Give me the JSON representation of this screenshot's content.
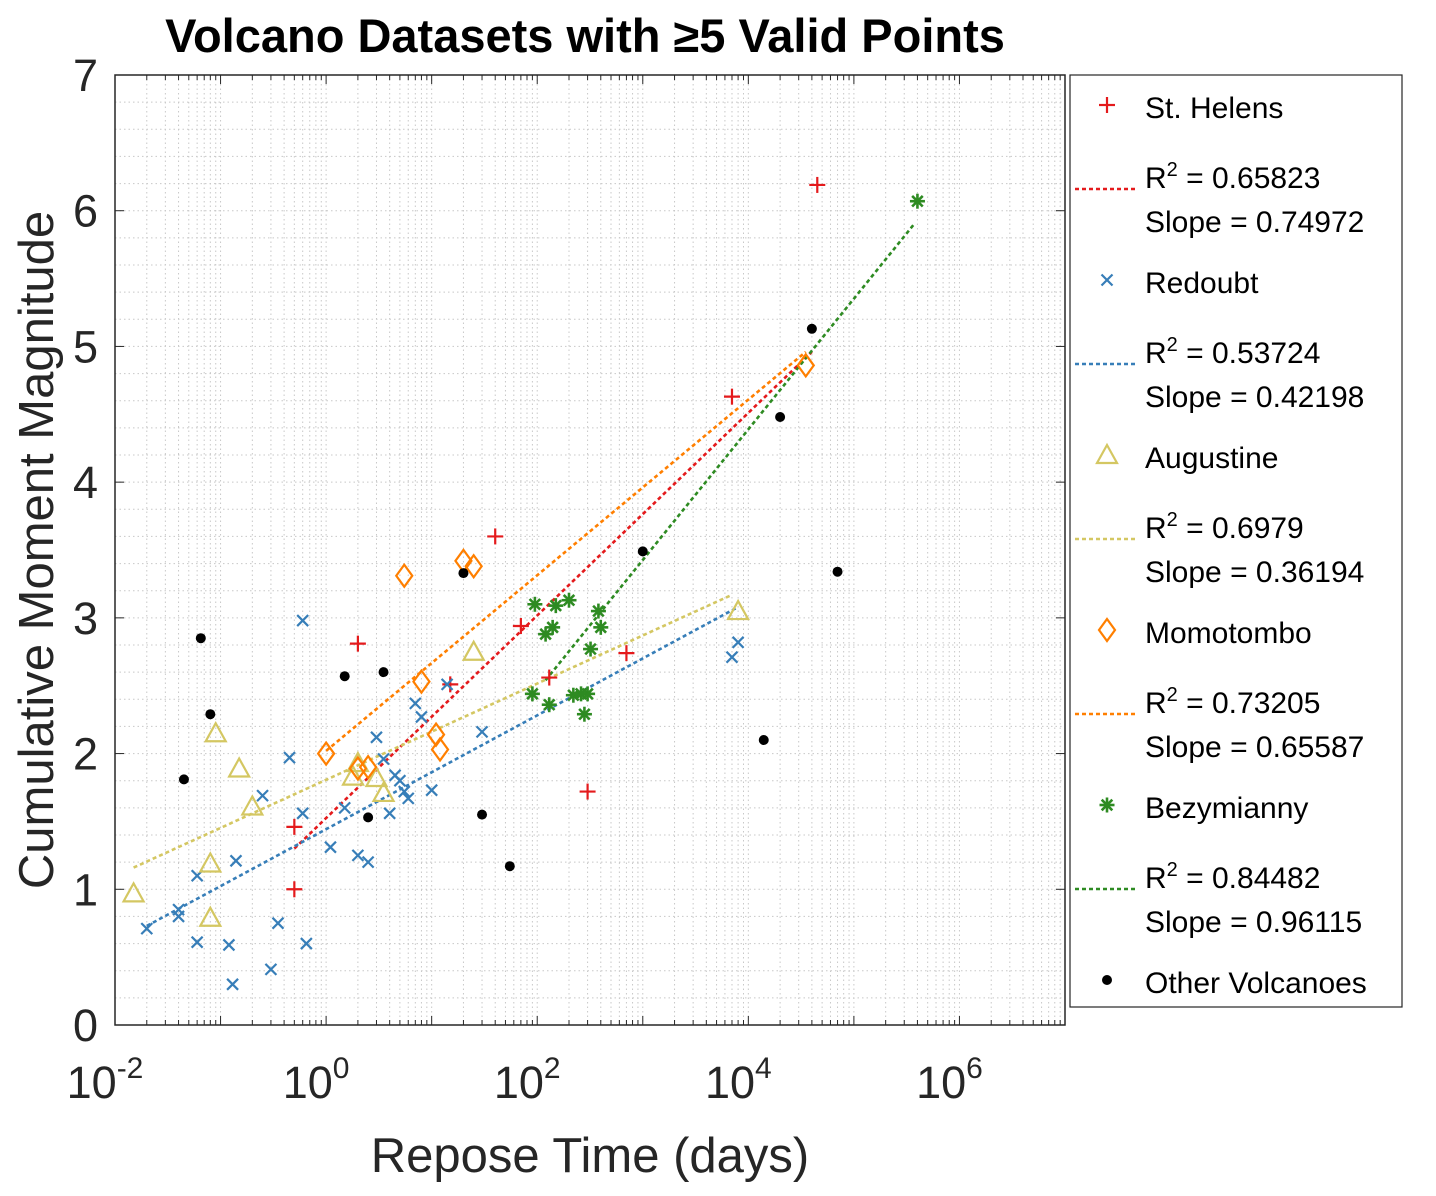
{
  "chart_data": {
    "type": "scatter",
    "title": "Volcano Datasets with ≥5 Valid Points",
    "xlabel": "Repose Time (days)",
    "ylabel": "Cumulative Moment Magnitude",
    "xscale": "log",
    "xlim": [
      0.01,
      10000000
    ],
    "ylim": [
      0,
      7
    ],
    "grid": "minor-dotted",
    "legend_position": "outside-right",
    "x_ticks": [
      {
        "base": "10",
        "exp": "-2",
        "value": 0.01
      },
      {
        "base": "10",
        "exp": "0",
        "value": 1
      },
      {
        "base": "10",
        "exp": "2",
        "value": 100
      },
      {
        "base": "10",
        "exp": "4",
        "value": 10000
      },
      {
        "base": "10",
        "exp": "6",
        "value": 1000000
      }
    ],
    "y_ticks": [
      "0",
      "1",
      "2",
      "3",
      "4",
      "5",
      "6",
      "7"
    ],
    "series": [
      {
        "name": "St. Helens",
        "marker": "plus",
        "color": "#e41a1c",
        "points": [
          [
            0.5,
            1.0
          ],
          [
            0.5,
            1.46
          ],
          [
            2.0,
            2.81
          ],
          [
            15,
            2.51
          ],
          [
            40,
            3.6
          ],
          [
            70,
            2.94
          ],
          [
            130,
            2.56
          ],
          [
            300,
            1.72
          ],
          [
            700,
            2.74
          ],
          [
            7000,
            4.63
          ],
          [
            45000,
            6.19
          ]
        ],
        "fit": {
          "r2_label": "R² = 0.65823",
          "r2_text": "= 0.65823",
          "slope_text": "Slope = 0.74972",
          "from": [
            0.5,
            1.3
          ],
          "to": [
            40000,
            4.96
          ]
        }
      },
      {
        "name": "Redoubt",
        "marker": "x",
        "color": "#377eb8",
        "points": [
          [
            0.02,
            0.71
          ],
          [
            0.04,
            0.8
          ],
          [
            0.04,
            0.85
          ],
          [
            0.06,
            0.61
          ],
          [
            0.06,
            1.1
          ],
          [
            0.12,
            0.59
          ],
          [
            0.13,
            0.3
          ],
          [
            0.14,
            1.21
          ],
          [
            0.25,
            1.69
          ],
          [
            0.3,
            0.41
          ],
          [
            0.35,
            0.75
          ],
          [
            0.45,
            1.97
          ],
          [
            0.6,
            1.56
          ],
          [
            0.6,
            2.98
          ],
          [
            0.65,
            0.6
          ],
          [
            1.1,
            1.31
          ],
          [
            1.5,
            1.6
          ],
          [
            2,
            1.25
          ],
          [
            2.5,
            1.2
          ],
          [
            3,
            2.12
          ],
          [
            3.5,
            1.96
          ],
          [
            4,
            1.56
          ],
          [
            4.5,
            1.84
          ],
          [
            5,
            1.8
          ],
          [
            5.5,
            1.72
          ],
          [
            6,
            1.67
          ],
          [
            7,
            2.37
          ],
          [
            8,
            2.27
          ],
          [
            10,
            1.73
          ],
          [
            14,
            2.51
          ],
          [
            30,
            2.16
          ],
          [
            7000,
            2.71
          ],
          [
            8000,
            2.82
          ]
        ],
        "fit": {
          "r2_label": "R² = 0.53724",
          "r2_text": "= 0.53724",
          "slope_text": "Slope = 0.42198",
          "from": [
            0.02,
            0.73
          ],
          "to": [
            8000,
            3.08
          ]
        }
      },
      {
        "name": "Augustine",
        "marker": "triangle",
        "color": "#d4c762",
        "points": [
          [
            0.015,
            0.97
          ],
          [
            0.08,
            1.19
          ],
          [
            0.08,
            0.79
          ],
          [
            0.09,
            2.15
          ],
          [
            0.15,
            1.89
          ],
          [
            0.2,
            1.61
          ],
          [
            1.8,
            1.83
          ],
          [
            2.0,
            1.93
          ],
          [
            3.0,
            1.82
          ],
          [
            3.5,
            1.71
          ],
          [
            25,
            2.75
          ],
          [
            8000,
            3.05
          ]
        ],
        "fit": {
          "r2_label": "R² = 0.6979",
          "r2_text": "= 0.6979",
          "slope_text": "Slope = 0.36194",
          "from": [
            0.015,
            1.16
          ],
          "to": [
            7000,
            3.17
          ]
        }
      },
      {
        "name": "Momotombo",
        "marker": "diamond",
        "color": "#ff7f00",
        "points": [
          [
            1.0,
            2.0
          ],
          [
            2.0,
            1.89
          ],
          [
            2.5,
            1.9
          ],
          [
            5.5,
            3.31
          ],
          [
            8,
            2.53
          ],
          [
            11,
            2.14
          ],
          [
            12,
            2.03
          ],
          [
            20,
            3.42
          ],
          [
            25,
            3.38
          ],
          [
            35000,
            4.86
          ]
        ],
        "fit": {
          "r2_label": "R² = 0.73205",
          "r2_text": "= 0.73205",
          "slope_text": "Slope = 0.65587",
          "from": [
            1.0,
            2.02
          ],
          "to": [
            35000,
            4.96
          ]
        }
      },
      {
        "name": "Bezymianny",
        "marker": "asterisk",
        "color": "#2e8b22",
        "points": [
          [
            90,
            2.44
          ],
          [
            95,
            3.1
          ],
          [
            120,
            2.88
          ],
          [
            130,
            2.36
          ],
          [
            140,
            2.93
          ],
          [
            150,
            3.09
          ],
          [
            200,
            3.13
          ],
          [
            220,
            2.43
          ],
          [
            260,
            2.44
          ],
          [
            280,
            2.29
          ],
          [
            300,
            2.44
          ],
          [
            320,
            2.77
          ],
          [
            380,
            3.05
          ],
          [
            400,
            2.93
          ],
          [
            400000,
            6.07
          ]
        ],
        "fit": {
          "r2_label": "R² = 0.84482",
          "r2_text": "= 0.84482",
          "slope_text": "Slope = 0.96115",
          "from": [
            120,
            2.54
          ],
          "to": [
            380000,
            5.91
          ]
        }
      },
      {
        "name": "Other Volcanoes",
        "marker": "dot",
        "color": "#000000",
        "points": [
          [
            0.045,
            1.81
          ],
          [
            0.065,
            2.85
          ],
          [
            0.08,
            2.29
          ],
          [
            1.5,
            2.57
          ],
          [
            2.5,
            1.53
          ],
          [
            3.5,
            2.6
          ],
          [
            20,
            3.33
          ],
          [
            30,
            1.55
          ],
          [
            55,
            1.17
          ],
          [
            1000,
            3.49
          ],
          [
            14000,
            2.1
          ],
          [
            20000,
            4.48
          ],
          [
            40000,
            5.13
          ],
          [
            70000,
            3.34
          ]
        ]
      }
    ]
  }
}
